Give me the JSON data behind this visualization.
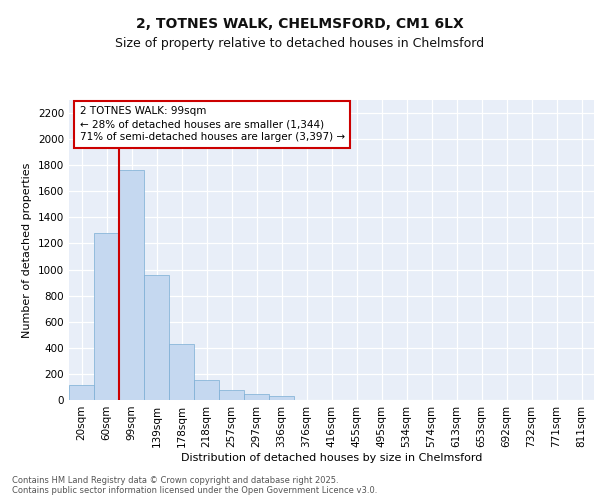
{
  "title_line1": "2, TOTNES WALK, CHELMSFORD, CM1 6LX",
  "title_line2": "Size of property relative to detached houses in Chelmsford",
  "xlabel": "Distribution of detached houses by size in Chelmsford",
  "ylabel": "Number of detached properties",
  "categories": [
    "20sqm",
    "60sqm",
    "99sqm",
    "139sqm",
    "178sqm",
    "218sqm",
    "257sqm",
    "297sqm",
    "336sqm",
    "376sqm",
    "416sqm",
    "455sqm",
    "495sqm",
    "534sqm",
    "574sqm",
    "613sqm",
    "653sqm",
    "692sqm",
    "732sqm",
    "771sqm",
    "811sqm"
  ],
  "bar_values": [
    115,
    1280,
    1760,
    960,
    430,
    150,
    75,
    45,
    30,
    0,
    0,
    0,
    0,
    0,
    0,
    0,
    0,
    0,
    0,
    0,
    0
  ],
  "bar_color": "#c5d8f0",
  "bar_edge_color": "#7aadd4",
  "vline_x": 1.5,
  "vline_color": "#cc0000",
  "annotation_text": "2 TOTNES WALK: 99sqm\n← 28% of detached houses are smaller (1,344)\n71% of semi-detached houses are larger (3,397) →",
  "annotation_box_edgecolor": "#cc0000",
  "ylim": [
    0,
    2300
  ],
  "yticks": [
    0,
    200,
    400,
    600,
    800,
    1000,
    1200,
    1400,
    1600,
    1800,
    2000,
    2200
  ],
  "bg_color": "#e8eef8",
  "grid_color": "#ffffff",
  "fig_bg": "#ffffff",
  "footnote": "Contains HM Land Registry data © Crown copyright and database right 2025.\nContains public sector information licensed under the Open Government Licence v3.0.",
  "title_fontsize": 10,
  "subtitle_fontsize": 9,
  "axis_label_fontsize": 8,
  "tick_fontsize": 7.5,
  "annot_fontsize": 7.5,
  "footnote_fontsize": 6
}
